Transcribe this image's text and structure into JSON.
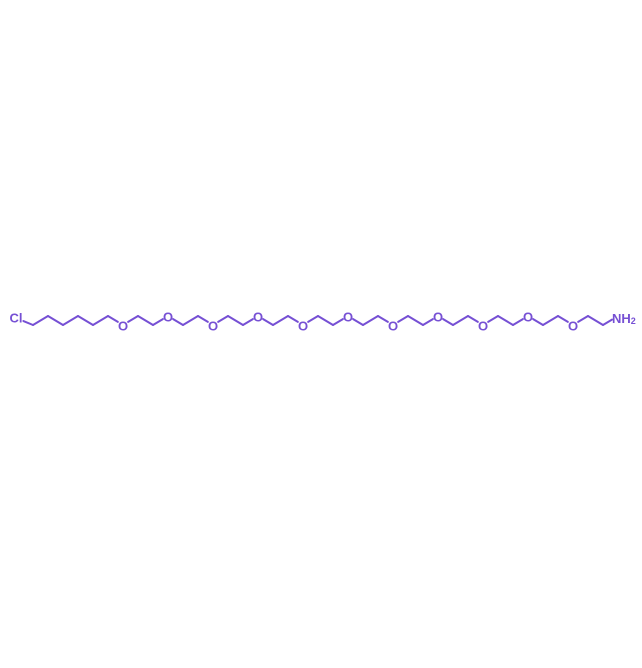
{
  "molecule": {
    "color": "#7650d4",
    "chain": [
      "Cl",
      "C",
      "C",
      "C",
      "C",
      "C",
      "C",
      "O",
      "C",
      "C",
      "O",
      "C",
      "C",
      "O",
      "C",
      "C",
      "O",
      "C",
      "C",
      "O",
      "C",
      "C",
      "O",
      "C",
      "C",
      "O",
      "C",
      "C",
      "O",
      "C",
      "C",
      "O",
      "C",
      "C",
      "O",
      "C",
      "C",
      "O",
      "C",
      "C",
      "N"
    ],
    "labels": {
      "chlorine": "Cl",
      "oxygen": "O",
      "amine_main": "NH",
      "amine_sub": "2"
    }
  }
}
